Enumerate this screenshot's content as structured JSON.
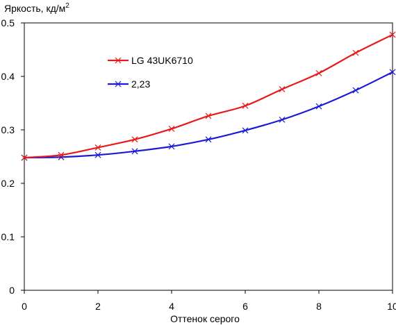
{
  "chart_data": {
    "type": "line",
    "ylabel": "Яркость, кд/м",
    "ylabel_sup": "2",
    "xlabel": "Оттенок серого",
    "xlim": [
      0,
      10
    ],
    "ylim": [
      0,
      0.5
    ],
    "x_ticks": [
      "0",
      "2",
      "4",
      "6",
      "8",
      "10"
    ],
    "y_ticks": [
      "0",
      "0.1",
      "0.2",
      "0.3",
      "0.4",
      "0.5"
    ],
    "grid": false,
    "legend_position": "top-left",
    "x": [
      0,
      1,
      2,
      3,
      4,
      5,
      6,
      7,
      8,
      9,
      10
    ],
    "series": [
      {
        "name": "LG 43UK6710",
        "color": "#e8191b",
        "values": [
          0.248,
          0.253,
          0.267,
          0.282,
          0.302,
          0.326,
          0.345,
          0.376,
          0.406,
          0.444,
          0.478
        ]
      },
      {
        "name": "2,23",
        "color": "#1a1ad6",
        "values": [
          0.248,
          0.249,
          0.253,
          0.26,
          0.269,
          0.282,
          0.299,
          0.319,
          0.344,
          0.374,
          0.408
        ]
      }
    ]
  }
}
